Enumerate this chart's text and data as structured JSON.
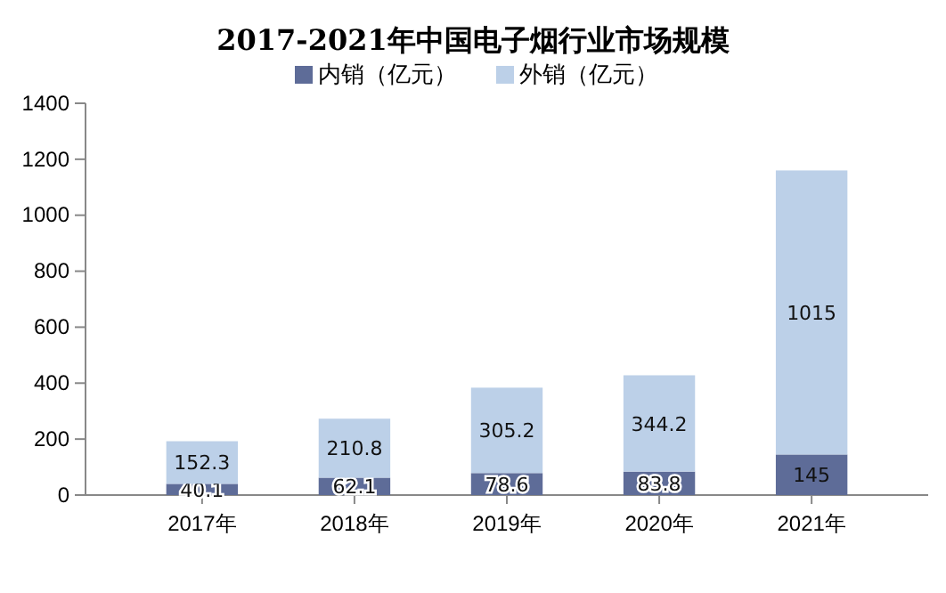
{
  "chart_data": {
    "type": "bar",
    "title": "2017-2021年中国电子烟行业市场规模",
    "categories": [
      "2017年",
      "2018年",
      "2019年",
      "2020年",
      "2021年"
    ],
    "stacked": true,
    "series": [
      {
        "name": "内销（亿元）",
        "color": "#5e6c98",
        "values": [
          40.1,
          62.1,
          78.6,
          83.8,
          145
        ]
      },
      {
        "name": "外销（亿元）",
        "color": "#bcd0e8",
        "values": [
          152.3,
          210.8,
          305.2,
          344.2,
          1015
        ]
      }
    ],
    "ylim": [
      0,
      1400
    ],
    "yticks": [
      0,
      200,
      400,
      600,
      800,
      1000,
      1200,
      1400
    ],
    "data_labels": true,
    "legend": "top",
    "grid": false
  }
}
